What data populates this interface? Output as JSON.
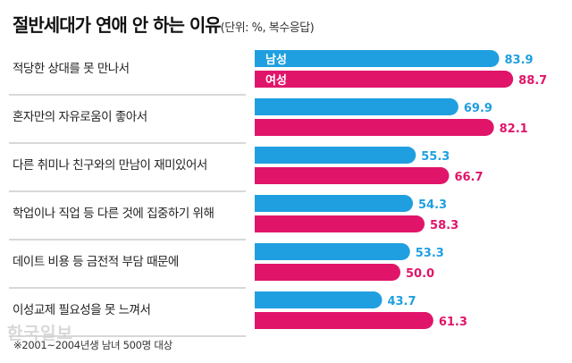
{
  "title": "절반세대가 연애 안 하는 이유",
  "subtitle": "(단위: %, 복수응답)",
  "footnote": "※2001~2004년생 남녀 500명 대상",
  "watermark": "한국일보",
  "colors": {
    "male": "#1f9fe0",
    "female": "#e0156a",
    "separator": "#999999",
    "label_text": "#222222"
  },
  "chart_data": {
    "type": "bar",
    "orientation": "horizontal",
    "categories": [
      "적당한 상대를 못 만나서",
      "혼자만의 자유로움이 좋아서",
      "다른 취미나 친구와의 만남이 재미있어서",
      "학업이나 직업 등 다른 것에 집중하기 위해",
      "데이트 비용 등 금전적 부담 때문에",
      "이성교제 필요성을 못 느껴서"
    ],
    "series": [
      {
        "name": "남성",
        "values": [
          83.9,
          69.9,
          55.3,
          54.3,
          53.3,
          43.7
        ]
      },
      {
        "name": "여성",
        "values": [
          88.7,
          82.1,
          66.7,
          58.3,
          50.0,
          61.3
        ]
      }
    ],
    "value_labels": [
      [
        "83.9",
        "69.9",
        "55.3",
        "54.3",
        "53.3",
        "43.7"
      ],
      [
        "88.7",
        "82.1",
        "66.7",
        "58.3",
        "50.0",
        "61.3"
      ]
    ],
    "xlim": [
      0,
      100
    ],
    "grid": false,
    "legend": "inside-first-bars"
  }
}
